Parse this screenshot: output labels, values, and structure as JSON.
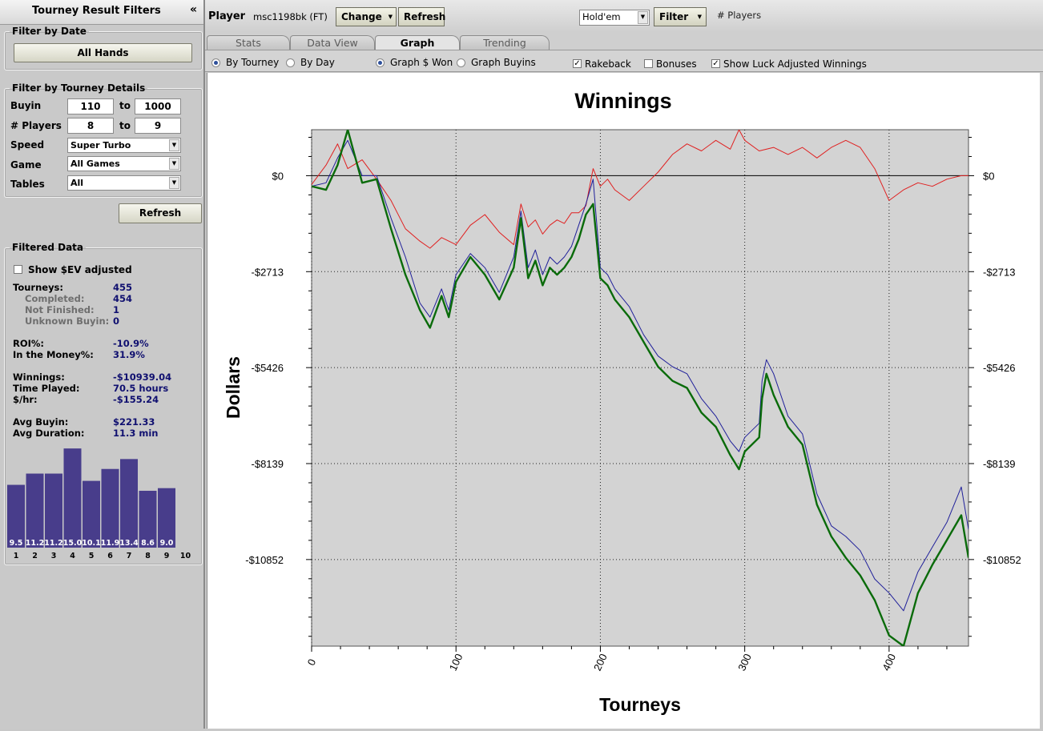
{
  "sidebar": {
    "title": "Tourney Result Filters",
    "collapse": "«",
    "filter_by_date": {
      "legend": "Filter by Date",
      "all_hands": "All Hands"
    },
    "filter_by_details": {
      "legend": "Filter by Tourney Details",
      "buyin_label": "Buyin",
      "buyin_from": "110",
      "buyin_to": "1000",
      "players_label": "# Players",
      "players_from": "8",
      "players_to": "9",
      "to": "to",
      "speed_label": "Speed",
      "speed_value": "Super Turbo",
      "game_label": "Game",
      "game_value": "All Games",
      "tables_label": "Tables",
      "tables_value": "All"
    },
    "refresh": "Refresh",
    "filtered": {
      "legend": "Filtered Data",
      "show_ev": "Show $EV adjusted",
      "tourneys_label": "Tourneys:",
      "tourneys": "455",
      "completed_label": "Completed:",
      "completed": "454",
      "not_finished_label": "Not Finished:",
      "not_finished": "1",
      "unknown_label": "Unknown Buyin:",
      "unknown": "0",
      "roi_label": "ROI%:",
      "roi": "-10.9%",
      "itm_label": "In the Money%:",
      "itm": "31.9%",
      "winnings_label": "Winnings:",
      "winnings": "-$10939.04",
      "time_label": "Time Played:",
      "time": "70.5 hours",
      "hr_label": "$/hr:",
      "hr": "-$155.24",
      "avg_buyin_label": "Avg Buyin:",
      "avg_buyin": "$221.33",
      "avg_dur_label": "Avg Duration:",
      "avg_dur": "11.3 min"
    },
    "histogram": {
      "values": [
        9.5,
        11.2,
        11.2,
        15.0,
        10.1,
        11.9,
        13.4,
        8.6,
        9.0
      ],
      "value_labels": [
        "9.5",
        "11.2",
        "11.2",
        "15.0",
        "10.1",
        "11.9",
        "13.4",
        "8.6",
        "9.0"
      ],
      "positions": [
        "1",
        "2",
        "3",
        "4",
        "5",
        "6",
        "7",
        "8",
        "9",
        "10"
      ],
      "color": "#483d8b"
    }
  },
  "topbar": {
    "player_label": "Player",
    "player_value": "msc1198bk (FT)",
    "change": "Change",
    "refresh": "Refresh",
    "game_select": "Hold'em",
    "filter": "Filter",
    "players_text": "# Players"
  },
  "tabs": [
    "Stats",
    "Data View",
    "Graph",
    "Trending"
  ],
  "active_tab": "Graph",
  "options": {
    "by_tourney": "By Tourney",
    "by_day": "By Day",
    "graph_won": "Graph $ Won",
    "graph_buyins": "Graph Buyins",
    "rakeback": "Rakeback",
    "bonuses": "Bonuses",
    "show_luck": "Show Luck Adjusted Winnings",
    "rakeback_checked": true,
    "bonuses_checked": false,
    "show_luck_checked": true
  },
  "chart_data": {
    "type": "line",
    "title": "Winnings",
    "xlabel": "Tourneys",
    "ylabel": "Dollars",
    "xlim": [
      0,
      455
    ],
    "ylim": [
      -13300,
      1300
    ],
    "x_ticks": [
      0,
      100,
      200,
      300,
      400
    ],
    "x_tick_labels": [
      "0",
      "100",
      "200",
      "300",
      "400"
    ],
    "y_ticks": [
      0,
      -2713,
      -5426,
      -8139,
      -10852
    ],
    "y_tick_labels": [
      "$0",
      "-$2713",
      "-$5426",
      "-$8139",
      "-$10852"
    ],
    "grid": true,
    "background": "#d3d3d3",
    "series": [
      {
        "color": "#e02020",
        "width": 1,
        "x": [
          0,
          10,
          18,
          25,
          35,
          45,
          55,
          65,
          75,
          82,
          90,
          100,
          110,
          120,
          130,
          140,
          145,
          150,
          155,
          160,
          165,
          170,
          175,
          180,
          185,
          190,
          195,
          200,
          205,
          210,
          220,
          230,
          240,
          250,
          260,
          270,
          280,
          290,
          296,
          300,
          310,
          320,
          330,
          340,
          350,
          360,
          370,
          380,
          390,
          400,
          410,
          420,
          430,
          440,
          450,
          455
        ],
        "y": [
          -250,
          300,
          900,
          200,
          450,
          -100,
          -700,
          -1500,
          -1850,
          -2050,
          -1750,
          -1950,
          -1400,
          -1100,
          -1600,
          -1950,
          -800,
          -1450,
          -1250,
          -1650,
          -1400,
          -1250,
          -1350,
          -1050,
          -1050,
          -850,
          200,
          -300,
          -100,
          -400,
          -700,
          -300,
          100,
          600,
          900,
          700,
          1000,
          750,
          1300,
          1000,
          700,
          800,
          600,
          800,
          500,
          800,
          1000,
          800,
          200,
          -700,
          -400,
          -200,
          -300,
          -100,
          0,
          0
        ]
      },
      {
        "color": "#20209a",
        "width": 1,
        "x": [
          0,
          10,
          18,
          25,
          35,
          45,
          55,
          65,
          75,
          82,
          90,
          95,
          100,
          110,
          120,
          130,
          140,
          145,
          150,
          155,
          160,
          165,
          170,
          175,
          180,
          185,
          190,
          195,
          200,
          205,
          210,
          220,
          230,
          240,
          250,
          260,
          270,
          280,
          290,
          296,
          300,
          310,
          312,
          315,
          320,
          330,
          340,
          350,
          360,
          370,
          380,
          390,
          400,
          410,
          420,
          430,
          440,
          450,
          455
        ],
        "y": [
          -300,
          -200,
          500,
          1000,
          0,
          0,
          -1200,
          -2300,
          -3600,
          -4000,
          -3200,
          -3800,
          -2800,
          -2200,
          -2600,
          -3300,
          -2300,
          -1000,
          -2600,
          -2100,
          -2800,
          -2300,
          -2500,
          -2300,
          -2000,
          -1400,
          -800,
          -100,
          -2600,
          -2800,
          -3200,
          -3700,
          -4500,
          -5100,
          -5400,
          -5600,
          -6300,
          -6800,
          -7500,
          -7800,
          -7400,
          -7000,
          -5800,
          -5200,
          -5600,
          -6800,
          -7300,
          -9000,
          -9900,
          -10200,
          -10600,
          -11400,
          -11800,
          -12300,
          -11200,
          -10500,
          -9800,
          -8800,
          -10000
        ]
      },
      {
        "color": "#0a6b0a",
        "width": 2.4,
        "x": [
          0,
          10,
          18,
          25,
          35,
          45,
          55,
          65,
          75,
          82,
          90,
          95,
          100,
          110,
          120,
          130,
          140,
          145,
          150,
          155,
          160,
          165,
          170,
          175,
          180,
          185,
          190,
          195,
          200,
          205,
          210,
          220,
          230,
          240,
          250,
          260,
          270,
          280,
          290,
          296,
          300,
          310,
          312,
          315,
          320,
          330,
          340,
          350,
          360,
          370,
          380,
          390,
          400,
          410,
          420,
          430,
          440,
          450,
          455
        ],
        "y": [
          -300,
          -400,
          300,
          1300,
          -200,
          -100,
          -1500,
          -2800,
          -3800,
          -4300,
          -3400,
          -4000,
          -3000,
          -2300,
          -2800,
          -3500,
          -2600,
          -1200,
          -2900,
          -2400,
          -3100,
          -2600,
          -2800,
          -2600,
          -2300,
          -1800,
          -1100,
          -800,
          -2900,
          -3100,
          -3500,
          -4000,
          -4700,
          -5400,
          -5800,
          -6000,
          -6700,
          -7100,
          -7900,
          -8300,
          -7800,
          -7400,
          -6300,
          -5600,
          -6200,
          -7100,
          -7600,
          -9300,
          -10200,
          -10800,
          -11300,
          -12000,
          -13000,
          -13300,
          -11800,
          -11000,
          -10300,
          -9600,
          -10800
        ]
      }
    ]
  }
}
